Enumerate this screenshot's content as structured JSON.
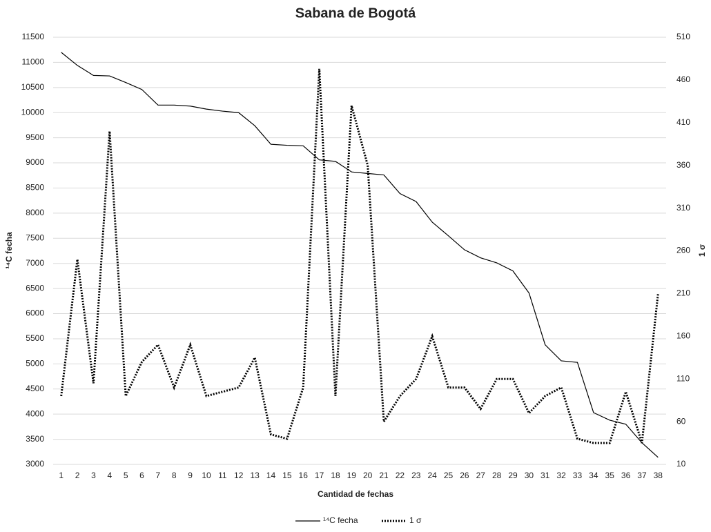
{
  "chart_data": {
    "type": "line",
    "title": "Sabana de Bogotá",
    "x_label": "Cantidad de fechas",
    "y_label": "¹⁴C fecha",
    "y2_label": "1 σ",
    "categories": [
      1,
      2,
      3,
      4,
      5,
      6,
      7,
      8,
      9,
      10,
      11,
      12,
      13,
      14,
      15,
      16,
      17,
      18,
      19,
      20,
      21,
      22,
      23,
      24,
      25,
      26,
      27,
      28,
      29,
      30,
      31,
      32,
      33,
      34,
      35,
      36,
      37,
      38
    ],
    "series": [
      {
        "name": "¹⁴C fecha",
        "color": "#000000",
        "style": "solid",
        "values": [
          11200,
          10940,
          10740,
          10730,
          10600,
          10460,
          10150,
          10150,
          10130,
          10070,
          10030,
          10000,
          9740,
          9370,
          9350,
          9340,
          9060,
          9030,
          8820,
          8790,
          8760,
          8390,
          8230,
          7820,
          7550,
          7270,
          7110,
          7010,
          6850,
          6410,
          5380,
          5060,
          5030,
          4030,
          3880,
          3800,
          3430,
          3140
        ]
      },
      {
        "name": "1 σ",
        "color": "#000000",
        "style": "dotted",
        "axis": "y2",
        "values": [
          90,
          250,
          105,
          400,
          90,
          130,
          150,
          100,
          150,
          90,
          95,
          100,
          135,
          45,
          40,
          100,
          473,
          90,
          430,
          360,
          60,
          90,
          110,
          160,
          100,
          100,
          75,
          110,
          110,
          70,
          90,
          100,
          40,
          35,
          35,
          95,
          35,
          210
        ]
      }
    ],
    "ylim": [
      3000,
      11500
    ],
    "yticks": [
      3000,
      3500,
      4000,
      4500,
      5000,
      5500,
      6000,
      6500,
      7000,
      7500,
      8000,
      8500,
      9000,
      9500,
      10000,
      10500,
      11000,
      11500
    ],
    "y2lim": [
      10,
      510
    ],
    "y2ticks": [
      10,
      60,
      110,
      160,
      210,
      260,
      310,
      360,
      410,
      460,
      510
    ],
    "grid": true,
    "legend": "bottom"
  }
}
